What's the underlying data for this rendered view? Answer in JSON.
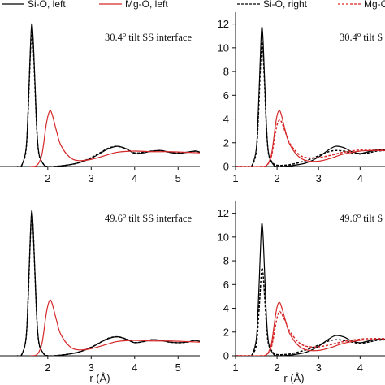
{
  "legend": {
    "left": [
      {
        "label": "Si-O, left",
        "color": "#000000",
        "dashed": false
      },
      {
        "label": "Mg-O, left",
        "color": "#d62728",
        "dashed": false
      }
    ],
    "right": [
      {
        "label": "Si-O, right",
        "color": "#000000",
        "dashed": true
      },
      {
        "label": "Mg-O, right",
        "color": "#d62728",
        "dashed": true
      }
    ]
  },
  "chart_data": [
    {
      "type": "line",
      "panel": "top-left",
      "annotation": "30.4° tilt SS interface",
      "xlabel": "",
      "ylabel": "",
      "xlim": [
        0.9,
        5.5
      ],
      "ylim": [
        0,
        13
      ],
      "xticks": [
        2,
        3,
        4,
        5
      ],
      "yticks": [],
      "series": [
        {
          "name": "Si-O, left",
          "color": "#000000",
          "dashed": false,
          "x": [
            1.3,
            1.4,
            1.5,
            1.55,
            1.6,
            1.63,
            1.66,
            1.7,
            1.75,
            1.8,
            1.9,
            2.0,
            2.3,
            2.7,
            3.0,
            3.2,
            3.4,
            3.6,
            3.8,
            4.0,
            4.2,
            4.4,
            4.6,
            4.8,
            5.0,
            5.2,
            5.4,
            5.5
          ],
          "y": [
            0,
            0.1,
            1.5,
            5.0,
            10.0,
            12.0,
            11.0,
            7.5,
            3.0,
            1.0,
            0.2,
            0,
            0.05,
            0.3,
            0.7,
            1.1,
            1.5,
            1.7,
            1.5,
            1.1,
            1.15,
            1.3,
            1.35,
            1.2,
            1.1,
            1.2,
            1.3,
            1.2
          ]
        },
        {
          "name": "Si-O, right",
          "color": "#000000",
          "dashed": true,
          "x": [
            1.3,
            1.4,
            1.5,
            1.55,
            1.6,
            1.63,
            1.66,
            1.7,
            1.75,
            1.8,
            1.9,
            2.0,
            2.3,
            2.7,
            3.0,
            3.2,
            3.4,
            3.6,
            3.8,
            4.0,
            4.2,
            4.4,
            4.6,
            4.8,
            5.0,
            5.2,
            5.4,
            5.5
          ],
          "y": [
            0,
            0.1,
            1.4,
            4.8,
            9.6,
            11.5,
            10.6,
            7.2,
            2.9,
            1.0,
            0.2,
            0,
            0.05,
            0.3,
            0.75,
            1.15,
            1.55,
            1.7,
            1.5,
            1.15,
            1.2,
            1.3,
            1.35,
            1.2,
            1.15,
            1.2,
            1.3,
            1.2
          ]
        },
        {
          "name": "Mg-O, left",
          "color": "#d62728",
          "dashed": false,
          "x": [
            1.6,
            1.75,
            1.85,
            1.9,
            1.95,
            2.0,
            2.05,
            2.1,
            2.2,
            2.3,
            2.5,
            2.7,
            3.0,
            3.3,
            3.6,
            4.0,
            4.4,
            4.8,
            5.2,
            5.5
          ],
          "y": [
            0,
            0.1,
            0.8,
            1.8,
            3.2,
            4.2,
            4.7,
            4.4,
            3.0,
            1.8,
            0.8,
            0.5,
            0.6,
            0.9,
            1.2,
            1.3,
            1.25,
            1.25,
            1.2,
            1.15
          ]
        }
      ]
    },
    {
      "type": "line",
      "panel": "top-right",
      "annotation": "30.4° tilt S",
      "xlabel": "",
      "ylabel": "",
      "xlim": [
        1,
        4.6
      ],
      "ylim": [
        0,
        13
      ],
      "xticks": [
        1,
        2,
        3,
        4
      ],
      "yticks": [
        0,
        2,
        4,
        6,
        8,
        10,
        12
      ],
      "series": [
        {
          "name": "Si-O, left",
          "color": "#000000",
          "dashed": false,
          "x": [
            1.0,
            1.3,
            1.4,
            1.5,
            1.55,
            1.6,
            1.63,
            1.66,
            1.7,
            1.75,
            1.8,
            1.9,
            2.0,
            2.3,
            2.7,
            3.0,
            3.2,
            3.4,
            3.6,
            3.8,
            4.0,
            4.2,
            4.4,
            4.6
          ],
          "y": [
            0,
            0,
            0.1,
            1.5,
            4.8,
            9.5,
            11.7,
            10.8,
            7.3,
            3.0,
            1.0,
            0.2,
            0,
            0.05,
            0.3,
            0.8,
            1.3,
            1.7,
            1.6,
            1.25,
            1.1,
            1.25,
            1.4,
            1.4
          ]
        },
        {
          "name": "Si-O, right",
          "color": "#000000",
          "dashed": true,
          "x": [
            1.0,
            1.3,
            1.4,
            1.5,
            1.55,
            1.6,
            1.63,
            1.66,
            1.7,
            1.75,
            1.8,
            1.9,
            2.0,
            2.3,
            2.7,
            3.0,
            3.2,
            3.4,
            3.6,
            3.8,
            4.0,
            4.2,
            4.4,
            4.6
          ],
          "y": [
            0,
            0,
            0.1,
            1.3,
            4.2,
            8.5,
            10.4,
            9.8,
            6.8,
            2.9,
            1.0,
            0.3,
            0.1,
            0.15,
            0.5,
            0.9,
            1.2,
            1.35,
            1.3,
            1.15,
            1.05,
            1.15,
            1.3,
            1.35
          ]
        },
        {
          "name": "Mg-O, left",
          "color": "#d62728",
          "dashed": false,
          "x": [
            1.0,
            1.6,
            1.75,
            1.85,
            1.9,
            1.95,
            2.0,
            2.05,
            2.1,
            2.2,
            2.3,
            2.5,
            2.7,
            3.0,
            3.3,
            3.6,
            4.0,
            4.3,
            4.6
          ],
          "y": [
            0,
            0,
            0.1,
            0.8,
            1.8,
            3.2,
            4.3,
            4.7,
            4.4,
            3.0,
            1.9,
            0.9,
            0.5,
            0.45,
            0.7,
            1.05,
            1.3,
            1.35,
            1.35
          ]
        },
        {
          "name": "Mg-O, right",
          "color": "#d62728",
          "dashed": true,
          "x": [
            1.0,
            1.6,
            1.75,
            1.85,
            1.9,
            1.95,
            2.0,
            2.05,
            2.1,
            2.2,
            2.3,
            2.5,
            2.7,
            3.0,
            3.3,
            3.6,
            4.0,
            4.3,
            4.6
          ],
          "y": [
            0,
            0,
            0.1,
            0.7,
            1.5,
            2.6,
            3.5,
            3.9,
            3.8,
            2.9,
            2.0,
            1.1,
            0.75,
            0.75,
            0.95,
            1.2,
            1.4,
            1.45,
            1.45
          ]
        }
      ]
    },
    {
      "type": "line",
      "panel": "bottom-left",
      "annotation": "49.6° tilt SS interface",
      "xlabel": "r (Å)",
      "ylabel": "",
      "xlim": [
        0.9,
        5.5
      ],
      "ylim": [
        0,
        13
      ],
      "xticks": [
        2,
        3,
        4,
        5
      ],
      "yticks": [],
      "series": [
        {
          "name": "Si-O, left",
          "color": "#000000",
          "dashed": false,
          "x": [
            1.3,
            1.4,
            1.5,
            1.55,
            1.6,
            1.63,
            1.66,
            1.7,
            1.75,
            1.8,
            1.9,
            2.0,
            2.3,
            2.7,
            3.0,
            3.2,
            3.4,
            3.6,
            3.8,
            4.0,
            4.2,
            4.4,
            4.6,
            4.8,
            5.0,
            5.2,
            5.4,
            5.5
          ],
          "y": [
            0,
            0.1,
            1.5,
            5.2,
            10.2,
            12.2,
            11.0,
            7.4,
            3.0,
            1.0,
            0.2,
            0,
            0.05,
            0.3,
            0.7,
            1.1,
            1.45,
            1.6,
            1.4,
            1.1,
            1.2,
            1.35,
            1.3,
            1.15,
            1.1,
            1.15,
            1.3,
            1.2
          ]
        },
        {
          "name": "Si-O, right",
          "color": "#000000",
          "dashed": true,
          "x": [
            1.3,
            1.4,
            1.5,
            1.55,
            1.6,
            1.63,
            1.66,
            1.7,
            1.75,
            1.8,
            1.9,
            2.0,
            2.3,
            2.7,
            3.0,
            3.2,
            3.4,
            3.6,
            3.8,
            4.0,
            4.2,
            4.4,
            4.6,
            4.8,
            5.0,
            5.2,
            5.4,
            5.5
          ],
          "y": [
            0,
            0.1,
            1.5,
            5.0,
            10.0,
            12.0,
            10.9,
            7.3,
            3.0,
            1.0,
            0.2,
            0,
            0.05,
            0.3,
            0.72,
            1.12,
            1.48,
            1.6,
            1.42,
            1.12,
            1.2,
            1.35,
            1.3,
            1.15,
            1.1,
            1.15,
            1.3,
            1.2
          ]
        },
        {
          "name": "Mg-O, left",
          "color": "#d62728",
          "dashed": false,
          "x": [
            1.6,
            1.75,
            1.85,
            1.9,
            1.95,
            2.0,
            2.05,
            2.1,
            2.2,
            2.3,
            2.5,
            2.7,
            3.0,
            3.3,
            3.6,
            4.0,
            4.4,
            4.8,
            5.2,
            5.5
          ],
          "y": [
            0,
            0.1,
            0.8,
            1.8,
            3.2,
            4.2,
            4.7,
            4.4,
            3.0,
            1.8,
            0.8,
            0.5,
            0.6,
            0.9,
            1.2,
            1.3,
            1.25,
            1.25,
            1.2,
            1.15
          ]
        }
      ]
    },
    {
      "type": "line",
      "panel": "bottom-right",
      "annotation": "49.6° tilt S",
      "xlabel": "r (Å)",
      "ylabel": "",
      "xlim": [
        1,
        4.6
      ],
      "ylim": [
        0,
        13
      ],
      "xticks": [
        1,
        2,
        3,
        4
      ],
      "yticks": [
        0,
        2,
        4,
        6,
        8,
        10,
        12
      ],
      "series": [
        {
          "name": "Si-O, left",
          "color": "#000000",
          "dashed": false,
          "x": [
            1.0,
            1.3,
            1.4,
            1.5,
            1.55,
            1.6,
            1.63,
            1.66,
            1.7,
            1.75,
            1.8,
            1.9,
            2.0,
            2.3,
            2.7,
            3.0,
            3.2,
            3.4,
            3.6,
            3.8,
            4.0,
            4.2,
            4.4,
            4.6
          ],
          "y": [
            0,
            0,
            0.1,
            1.4,
            4.5,
            9.0,
            11.1,
            10.3,
            7.0,
            2.9,
            1.0,
            0.2,
            0,
            0.05,
            0.3,
            0.8,
            1.3,
            1.7,
            1.6,
            1.25,
            1.1,
            1.25,
            1.4,
            1.4
          ]
        },
        {
          "name": "Si-O, right",
          "color": "#000000",
          "dashed": true,
          "x": [
            1.0,
            1.3,
            1.4,
            1.5,
            1.55,
            1.6,
            1.63,
            1.66,
            1.7,
            1.75,
            1.8,
            1.9,
            2.0,
            2.3,
            2.7,
            3.0,
            3.2,
            3.4,
            3.6,
            3.8,
            4.0,
            4.2,
            4.4,
            4.6
          ],
          "y": [
            0,
            0,
            0.1,
            0.9,
            3.0,
            5.8,
            7.3,
            7.0,
            5.0,
            2.3,
            0.9,
            0.3,
            0.1,
            0.15,
            0.5,
            0.9,
            1.2,
            1.35,
            1.3,
            1.15,
            1.05,
            1.15,
            1.3,
            1.35
          ]
        },
        {
          "name": "Mg-O, left",
          "color": "#d62728",
          "dashed": false,
          "x": [
            1.0,
            1.6,
            1.75,
            1.85,
            1.9,
            1.95,
            2.0,
            2.05,
            2.1,
            2.2,
            2.3,
            2.5,
            2.7,
            3.0,
            3.3,
            3.6,
            4.0,
            4.3,
            4.6
          ],
          "y": [
            0,
            0,
            0.1,
            0.8,
            1.8,
            3.1,
            4.1,
            4.5,
            4.2,
            3.0,
            1.9,
            0.9,
            0.5,
            0.45,
            0.7,
            1.05,
            1.3,
            1.35,
            1.35
          ]
        },
        {
          "name": "Mg-O, right",
          "color": "#d62728",
          "dashed": true,
          "x": [
            1.0,
            1.6,
            1.75,
            1.85,
            1.9,
            1.95,
            2.0,
            2.05,
            2.1,
            2.2,
            2.3,
            2.5,
            2.7,
            3.0,
            3.3,
            3.6,
            4.0,
            4.3,
            4.6
          ],
          "y": [
            0,
            0,
            0.1,
            0.6,
            1.3,
            2.3,
            3.2,
            3.7,
            3.6,
            2.9,
            2.1,
            1.2,
            0.8,
            0.75,
            0.95,
            1.2,
            1.4,
            1.45,
            1.45
          ]
        }
      ]
    }
  ]
}
